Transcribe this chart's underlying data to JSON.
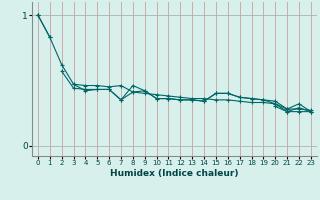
{
  "background_color": "#d8f0ec",
  "grid_color_v": "#c8a0a0",
  "grid_color_h": "#b0b0b0",
  "line_color": "#006666",
  "xlabel": "Humidex (Indice chaleur)",
  "xlim": [
    -0.5,
    23.5
  ],
  "ylim": [
    -0.08,
    1.1
  ],
  "yticks": [
    0,
    1
  ],
  "xticks": [
    0,
    1,
    2,
    3,
    4,
    5,
    6,
    7,
    8,
    9,
    10,
    11,
    12,
    13,
    14,
    15,
    16,
    17,
    18,
    19,
    20,
    21,
    22,
    23
  ],
  "series": [
    [
      1.0,
      null,
      null,
      null,
      null,
      null,
      null,
      null,
      null,
      null,
      null,
      null,
      null,
      null,
      null,
      null,
      null,
      null,
      null,
      null,
      null,
      null,
      null,
      null
    ],
    [
      1.0,
      0.83,
      null,
      null,
      null,
      null,
      null,
      null,
      null,
      null,
      null,
      null,
      null,
      null,
      null,
      null,
      null,
      null,
      null,
      null,
      null,
      null,
      null,
      null
    ],
    [
      1.0,
      0.83,
      0.62,
      0.47,
      0.46,
      0.46,
      0.45,
      0.46,
      0.41,
      0.4,
      0.39,
      0.38,
      0.37,
      0.36,
      0.36,
      0.35,
      0.35,
      0.34,
      0.33,
      0.33,
      0.32,
      0.28,
      0.28,
      0.27
    ],
    [
      null,
      null,
      0.57,
      0.44,
      0.43,
      0.43,
      0.43,
      0.35,
      0.41,
      0.42,
      0.36,
      0.36,
      0.35,
      0.35,
      0.34,
      0.4,
      0.4,
      0.37,
      0.36,
      0.35,
      0.34,
      0.28,
      0.32,
      0.26
    ],
    [
      null,
      null,
      null,
      0.47,
      0.42,
      0.43,
      0.43,
      0.35,
      0.46,
      0.42,
      0.36,
      0.36,
      0.35,
      0.35,
      0.34,
      0.4,
      0.4,
      0.37,
      0.36,
      0.35,
      0.32,
      0.26,
      0.29,
      0.26
    ],
    [
      null,
      null,
      null,
      null,
      null,
      null,
      null,
      null,
      null,
      null,
      null,
      null,
      null,
      null,
      null,
      null,
      null,
      null,
      null,
      null,
      0.3,
      0.26,
      0.26,
      0.26
    ]
  ],
  "figsize": [
    3.2,
    2.0
  ],
  "dpi": 100
}
